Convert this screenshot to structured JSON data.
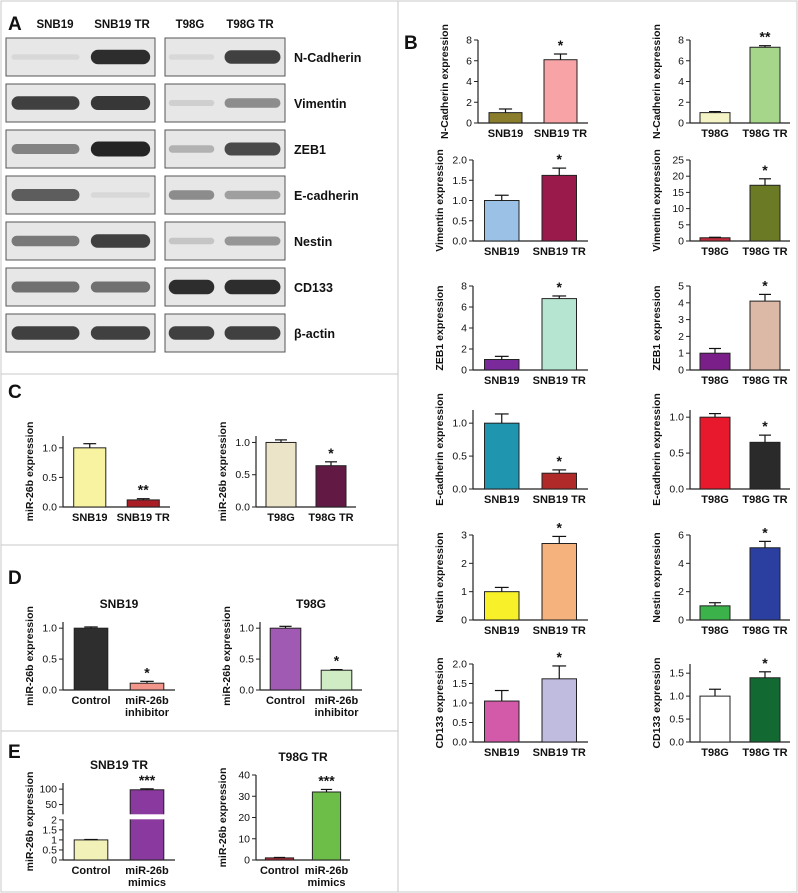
{
  "panels": {
    "A": "A",
    "B": "B",
    "C": "C",
    "D": "D",
    "E": "E"
  },
  "western_blot": {
    "columns": [
      "SNB19",
      "SNB19 TR",
      "T98G",
      "T98G TR"
    ],
    "proteins": [
      "N-Cadherin",
      "Vimentin",
      "ZEB1",
      "E-cadherin",
      "Nestin",
      "CD133",
      "β-actin"
    ],
    "band_intensity": [
      [
        0.05,
        0.95,
        0.05,
        0.85
      ],
      [
        0.85,
        0.9,
        0.1,
        0.45
      ],
      [
        0.5,
        1.0,
        0.25,
        0.8
      ],
      [
        0.7,
        0.05,
        0.45,
        0.35
      ],
      [
        0.55,
        0.85,
        0.15,
        0.4
      ],
      [
        0.6,
        0.6,
        0.95,
        0.95
      ],
      [
        0.85,
        0.85,
        0.85,
        0.85
      ]
    ]
  },
  "chart_data": [
    {
      "type": "bar",
      "panel": "B",
      "ylabel": "N-Cadherin expression",
      "categories": [
        "SNB19",
        "SNB19 TR"
      ],
      "values": [
        1,
        6.1
      ],
      "errors": [
        0.35,
        0.55
      ],
      "ylim": [
        0,
        8
      ],
      "yticks": [
        0,
        2,
        4,
        6,
        8
      ],
      "sig": [
        "",
        "*"
      ],
      "colors": [
        "#8a7d2c",
        "#f8a3a6"
      ]
    },
    {
      "type": "bar",
      "panel": "B",
      "ylabel": "N-Cadherin expression",
      "categories": [
        "T98G",
        "T98G TR"
      ],
      "values": [
        1,
        7.3
      ],
      "errors": [
        0.1,
        0.15
      ],
      "ylim": [
        0,
        8
      ],
      "yticks": [
        0,
        2,
        4,
        6,
        8
      ],
      "sig": [
        "",
        "**"
      ],
      "colors": [
        "#f4f4c6",
        "#a6d68a"
      ]
    },
    {
      "type": "bar",
      "panel": "B",
      "ylabel": "Vimentin expression",
      "categories": [
        "SNB19",
        "SNB19 TR"
      ],
      "values": [
        1,
        1.62
      ],
      "errors": [
        0.13,
        0.18
      ],
      "ylim": [
        0,
        2.0
      ],
      "yticks": [
        0.0,
        0.5,
        1.0,
        1.5,
        2.0
      ],
      "sig": [
        "",
        "*"
      ],
      "colors": [
        "#9cc1e6",
        "#9a1a4c"
      ]
    },
    {
      "type": "bar",
      "panel": "B",
      "ylabel": "Vimentin expression",
      "categories": [
        "T98G",
        "T98G TR"
      ],
      "values": [
        1,
        17.2
      ],
      "errors": [
        0.15,
        2.0
      ],
      "ylim": [
        0,
        25
      ],
      "yticks": [
        0,
        5,
        10,
        15,
        20,
        25
      ],
      "sig": [
        "",
        "*"
      ],
      "colors": [
        "#c02a3a",
        "#6b7a25"
      ]
    },
    {
      "type": "bar",
      "panel": "B",
      "ylabel": "ZEB1 expression",
      "categories": [
        "SNB19",
        "SNB19 TR"
      ],
      "values": [
        1,
        6.8
      ],
      "errors": [
        0.3,
        0.25
      ],
      "ylim": [
        0,
        8
      ],
      "yticks": [
        0,
        2,
        4,
        6,
        8
      ],
      "sig": [
        "",
        "*"
      ],
      "colors": [
        "#7a2a9a",
        "#b6e6d2"
      ]
    },
    {
      "type": "bar",
      "panel": "B",
      "ylabel": "ZEB1 expression",
      "categories": [
        "T98G",
        "T98G TR"
      ],
      "values": [
        1,
        4.1
      ],
      "errors": [
        0.28,
        0.4
      ],
      "ylim": [
        0,
        5
      ],
      "yticks": [
        0,
        1,
        2,
        3,
        4,
        5
      ],
      "sig": [
        "",
        "*"
      ],
      "colors": [
        "#7a1e8a",
        "#dcb9a6"
      ]
    },
    {
      "type": "bar",
      "panel": "B",
      "ylabel": "E-cadherin expression",
      "categories": [
        "SNB19",
        "SNB19 TR"
      ],
      "values": [
        1.0,
        0.24
      ],
      "errors": [
        0.14,
        0.05
      ],
      "ylim": [
        0,
        1.2
      ],
      "yticks": [
        0.0,
        0.5,
        1.0
      ],
      "sig": [
        "",
        "*"
      ],
      "colors": [
        "#1f95b0",
        "#b02a2a"
      ]
    },
    {
      "type": "bar",
      "panel": "B",
      "ylabel": "E-cadherin expression",
      "categories": [
        "T98G",
        "T98G TR"
      ],
      "values": [
        1.0,
        0.65
      ],
      "errors": [
        0.05,
        0.1
      ],
      "ylim": [
        0,
        1.1
      ],
      "yticks": [
        0.0,
        0.5,
        1.0
      ],
      "sig": [
        "",
        "*"
      ],
      "colors": [
        "#e8192c",
        "#2a2a2a"
      ]
    },
    {
      "type": "bar",
      "panel": "B",
      "ylabel": "Nestin expression",
      "categories": [
        "SNB19",
        "SNB19 TR"
      ],
      "values": [
        1,
        2.7
      ],
      "errors": [
        0.15,
        0.25
      ],
      "ylim": [
        0,
        3
      ],
      "yticks": [
        0,
        1,
        2,
        3
      ],
      "sig": [
        "",
        "*"
      ],
      "colors": [
        "#f8f12a",
        "#f6b27c"
      ]
    },
    {
      "type": "bar",
      "panel": "B",
      "ylabel": "Nestin expression",
      "categories": [
        "T98G",
        "T98G TR"
      ],
      "values": [
        1,
        5.1
      ],
      "errors": [
        0.22,
        0.45
      ],
      "ylim": [
        0,
        6
      ],
      "yticks": [
        0,
        2,
        4,
        6
      ],
      "sig": [
        "",
        "*"
      ],
      "colors": [
        "#3cb24a",
        "#2a3fa0"
      ]
    },
    {
      "type": "bar",
      "panel": "B",
      "ylabel": "CD133 expression",
      "categories": [
        "SNB19",
        "SNB19 TR"
      ],
      "values": [
        1.05,
        1.62
      ],
      "errors": [
        0.27,
        0.33
      ],
      "ylim": [
        0,
        2.0
      ],
      "yticks": [
        0.0,
        0.5,
        1.0,
        1.5,
        2.0
      ],
      "sig": [
        "",
        "*"
      ],
      "colors": [
        "#d25aa8",
        "#c0bce0"
      ]
    },
    {
      "type": "bar",
      "panel": "B",
      "ylabel": "CD133 expression",
      "categories": [
        "T98G",
        "T98G TR"
      ],
      "values": [
        1.0,
        1.4
      ],
      "errors": [
        0.15,
        0.13
      ],
      "ylim": [
        0,
        1.7
      ],
      "yticks": [
        0.0,
        0.5,
        1.0,
        1.5
      ],
      "sig": [
        "",
        "*"
      ],
      "colors": [
        "#ffffff",
        "#126a32"
      ]
    },
    {
      "type": "bar",
      "panel": "C",
      "ylabel": "miR-26b expression",
      "categories": [
        "SNB19",
        "SNB19 TR"
      ],
      "values": [
        1.0,
        0.12
      ],
      "errors": [
        0.07,
        0.02
      ],
      "ylim": [
        0,
        1.2
      ],
      "yticks": [
        0.0,
        0.5,
        1.0
      ],
      "sig": [
        "",
        "**"
      ],
      "colors": [
        "#f8f3a0",
        "#a81e24"
      ]
    },
    {
      "type": "bar",
      "panel": "C",
      "ylabel": "miR-26b expression",
      "categories": [
        "T98G",
        "T98G TR"
      ],
      "values": [
        1.0,
        0.64
      ],
      "errors": [
        0.04,
        0.06
      ],
      "ylim": [
        0,
        1.1
      ],
      "yticks": [
        0.0,
        0.5,
        1.0
      ],
      "sig": [
        "",
        "*"
      ],
      "colors": [
        "#ebe4c8",
        "#621a44"
      ]
    },
    {
      "type": "bar",
      "panel": "D",
      "title": "SNB19",
      "ylabel": "miR-26b expression",
      "categories": [
        "Control",
        "miR-26b inhibitor"
      ],
      "values": [
        1.0,
        0.11
      ],
      "errors": [
        0.02,
        0.03
      ],
      "ylim": [
        0,
        1.1
      ],
      "yticks": [
        0.0,
        0.5,
        1.0
      ],
      "sig": [
        "",
        "*"
      ],
      "colors": [
        "#2e2e2e",
        "#f2968c"
      ]
    },
    {
      "type": "bar",
      "panel": "D",
      "title": "T98G",
      "ylabel": "miR-26b expression",
      "categories": [
        "Control",
        "miR-26b inhibitor"
      ],
      "values": [
        1.0,
        0.32
      ],
      "errors": [
        0.03,
        0.01
      ],
      "ylim": [
        0,
        1.1
      ],
      "yticks": [
        0.0,
        0.5,
        1.0
      ],
      "sig": [
        "",
        "*"
      ],
      "colors": [
        "#a05ab4",
        "#cfecc4"
      ]
    },
    {
      "type": "bar",
      "panel": "E",
      "title": "SNB19 TR",
      "ylabel": "miR-26b expression",
      "categories": [
        "Control",
        "miR-26b mimics"
      ],
      "values": [
        1.0,
        98
      ],
      "errors": [
        0.02,
        3
      ],
      "ylim": [
        0,
        120
      ],
      "yticks": [
        0,
        0.5,
        1.0,
        1.5,
        2.0,
        50,
        100
      ],
      "broken_axis": {
        "lower": [
          0,
          2.0
        ],
        "upper": [
          20,
          120
        ]
      },
      "sig": [
        "",
        "***"
      ],
      "colors": [
        "#f2f2b8",
        "#8a3a9e"
      ]
    },
    {
      "type": "bar",
      "panel": "E",
      "title": "T98G TR",
      "ylabel": "miR-26b expression",
      "categories": [
        "Control",
        "miR-26b mimics"
      ],
      "values": [
        1,
        32
      ],
      "errors": [
        0.2,
        1.2
      ],
      "ylim": [
        0,
        40
      ],
      "yticks": [
        0,
        10,
        20,
        30,
        40
      ],
      "sig": [
        "",
        "***"
      ],
      "colors": [
        "#c02a3a",
        "#6cbe48"
      ]
    }
  ]
}
